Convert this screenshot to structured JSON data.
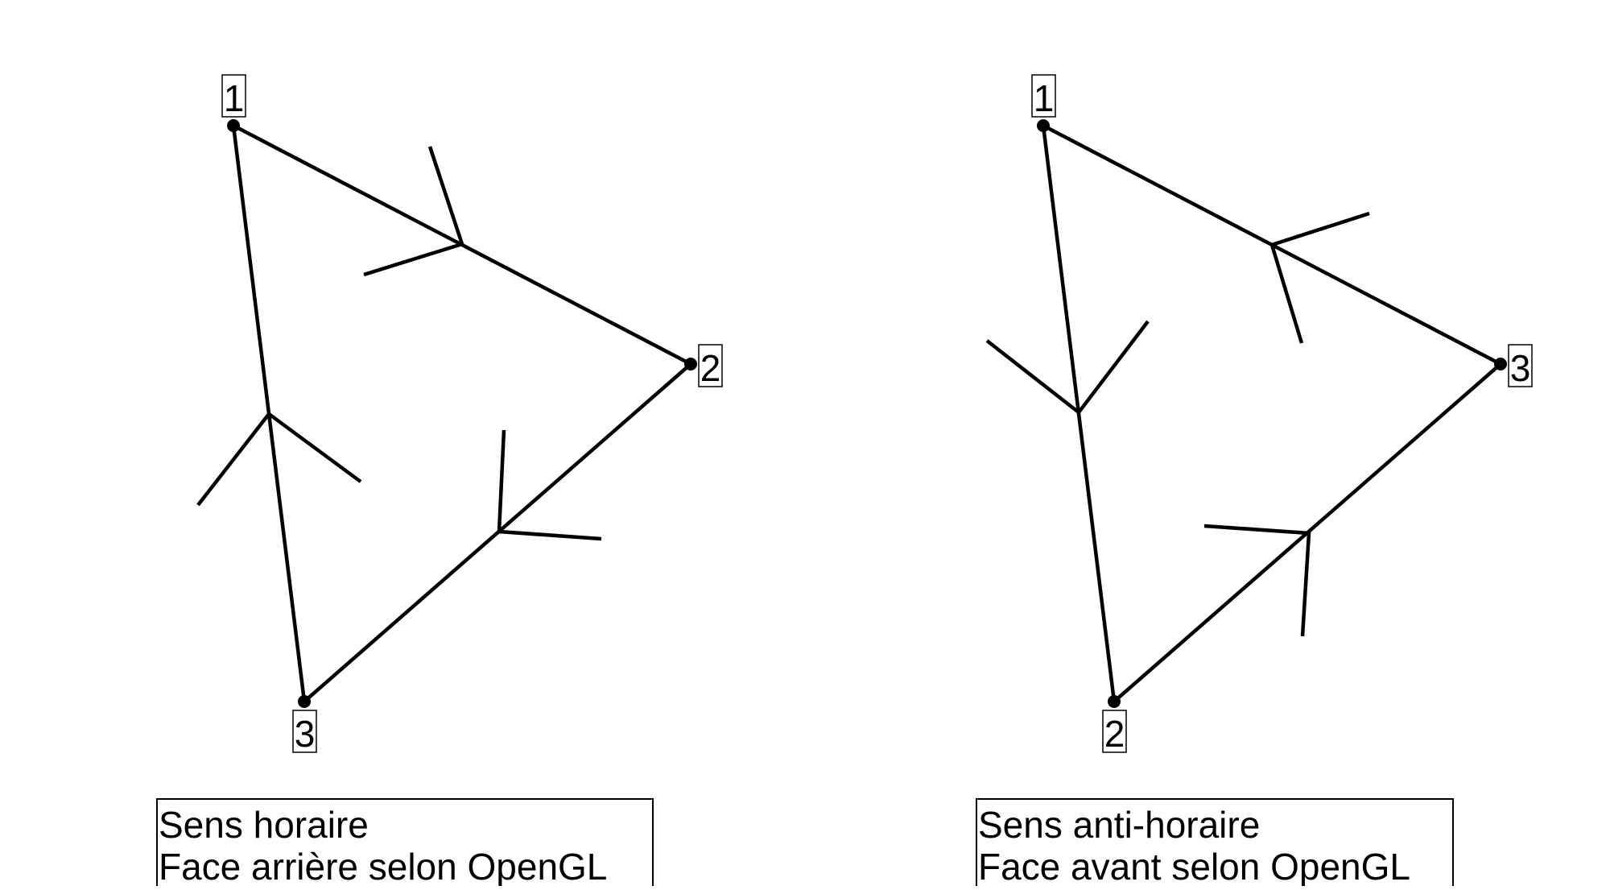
{
  "colors": {
    "stroke": "#000000",
    "background": "#ffffff"
  },
  "panels": [
    {
      "vertex_labels": [
        "1",
        "2",
        "3"
      ],
      "caption": {
        "line1": "Sens horaire",
        "line2": "Face arrière selon OpenGL"
      }
    },
    {
      "vertex_labels": [
        "1",
        "3",
        "2"
      ],
      "caption": {
        "line1": "Sens anti-horaire",
        "line2": "Face avant selon OpenGL"
      }
    }
  ]
}
